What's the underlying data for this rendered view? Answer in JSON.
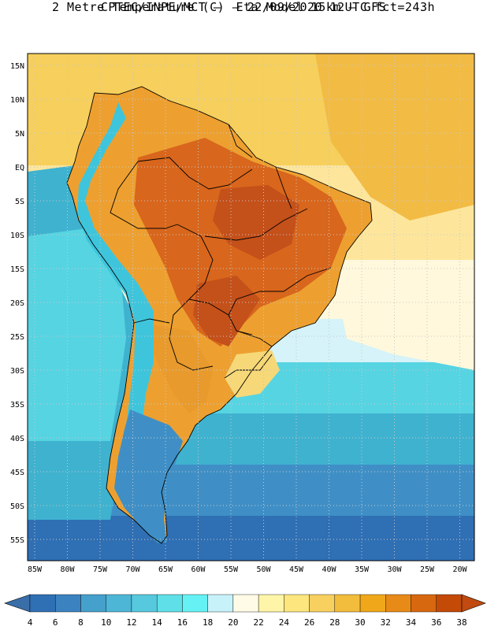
{
  "header": {
    "line1": "CPTEC/INPE/MCT –  Eta Model 15km – GFS",
    "line2": "2 Metre Temperature (C) – 22/09/2020 12UTC fct=243h"
  },
  "lat_labels": [
    "15N",
    "10N",
    "5N",
    "EQ",
    "5S",
    "10S",
    "15S",
    "20S",
    "25S",
    "30S",
    "35S",
    "40S",
    "45S",
    "50S",
    "55S"
  ],
  "lon_labels": [
    "85W",
    "80W",
    "75W",
    "70W",
    "65W",
    "60W",
    "55W",
    "50W",
    "45W",
    "40W",
    "35W",
    "30W",
    "25W",
    "20W"
  ],
  "colorbar": {
    "labels": [
      "4",
      "6",
      "8",
      "10",
      "12",
      "14",
      "16",
      "18",
      "20",
      "22",
      "24",
      "26",
      "28",
      "30",
      "32",
      "34",
      "36",
      "38"
    ],
    "colors": [
      "#2f6fb4",
      "#3b82c0",
      "#45a0cc",
      "#4db6d6",
      "#57c9de",
      "#5fe0e8",
      "#66f2f4",
      "#c8f2fa",
      "#fffbe6",
      "#fff5a8",
      "#fde67e",
      "#f8d060",
      "#f2bc3c",
      "#f0a81a",
      "#e88a18",
      "#d86810",
      "#c44a08"
    ],
    "low_color": "#3a6ea8",
    "high_color": "#c04a10"
  },
  "map_colors": {
    "ocean_warm": "#f6cf5c",
    "ocean_hot": "#f2bb44",
    "ocean_mild": "#fde69c",
    "ocean_pale": "#fff8dc",
    "ocean_light": "#d5f3f8",
    "ocean_cyan": "#56d4e2",
    "ocean_teal": "#3fb2cf",
    "ocean_blue": "#3f8fc6",
    "ocean_deep": "#2f6fb4",
    "land_hot": "#d8661c",
    "land_very_hot": "#c4501a",
    "land_warm": "#e89a2c",
    "land_orange": "#eda030",
    "land_cool": "#f6d878",
    "andes": "#3ec5dc",
    "patagonia": "#3f8fc6",
    "border": "#000000",
    "grid": "#c9c9c9"
  }
}
